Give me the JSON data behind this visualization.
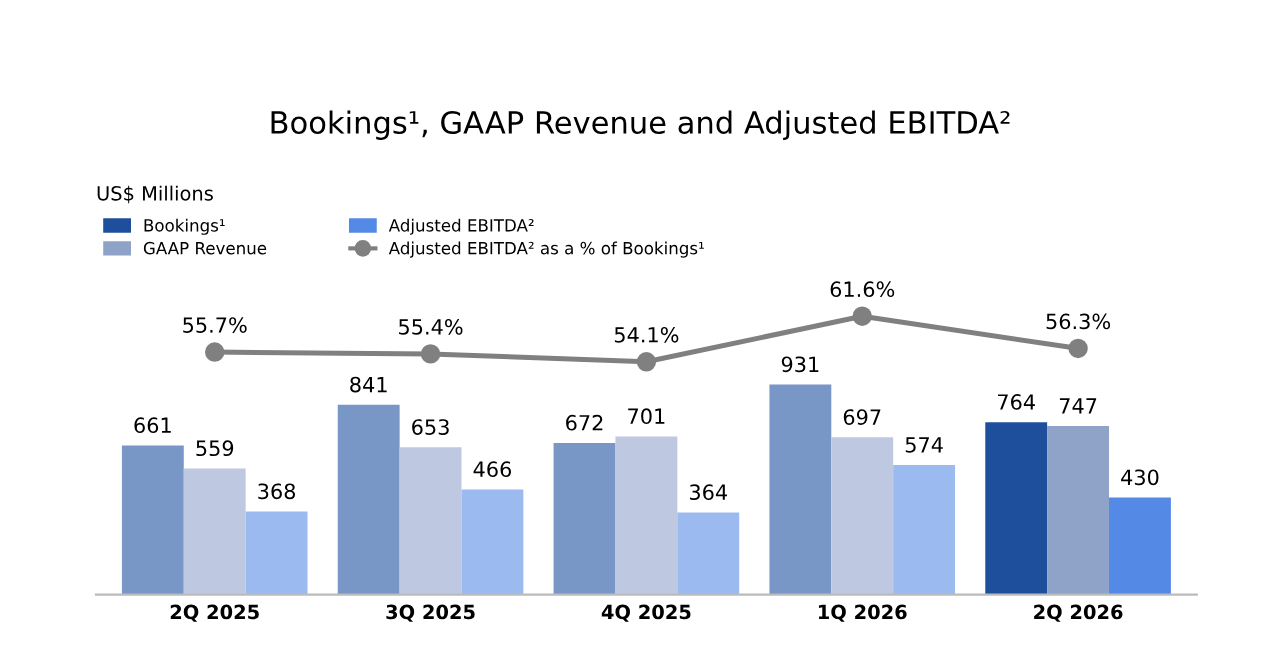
{
  "chart_data": [
    {
      "type": "bar",
      "annotations": [
        "US$ Millions"
      ],
      "categories": [
        "2Q 2025",
        "3Q 2025",
        "4Q 2025",
        "1Q 2026",
        "2Q 2026"
      ],
      "series": [
        {
          "name": "Bookings¹",
          "color": "#1e4f9c",
          "colors": [
            "#7896c6",
            "#7896c6",
            "#7896c6",
            "#7896c6",
            "#1e4f9c"
          ],
          "values": [
            661,
            841,
            672,
            931,
            764
          ]
        },
        {
          "name": "GAAP Revenue",
          "color": "#8fa3c8",
          "colors": [
            "#bec8e0",
            "#bec8e0",
            "#bec8e0",
            "#bec8e0",
            "#8fa3c8"
          ],
          "values": [
            559,
            653,
            701,
            697,
            747
          ]
        },
        {
          "name": "Adjusted EBITDA²",
          "color": "#5589e6",
          "colors": [
            "#9bbaf0",
            "#9bbaf0",
            "#9bbaf0",
            "#9bbaf0",
            "#5589e6"
          ],
          "values": [
            368,
            466,
            364,
            574,
            430
          ]
        }
      ],
      "data_labels": true,
      "tick_labels": "x",
      "legend": "top left"
    },
    {
      "type": "line",
      "title": "Bookings¹, GAAP Revenue and Adjusted EBITDA²",
      "categories": [
        null,
        null,
        null,
        null,
        null
      ],
      "tick_labels": false,
      "marker": "circle",
      "series": [
        {
          "name": "Adjusted EBITDA² as a % of Bookings¹",
          "color": "#808080",
          "values": [
            55.7,
            55.4,
            54.1,
            61.6,
            56.3
          ],
          "value_labels": [
            "55.7%",
            "55.4%",
            "54.1%",
            "61.6%",
            "56.3%"
          ]
        }
      ]
    }
  ]
}
